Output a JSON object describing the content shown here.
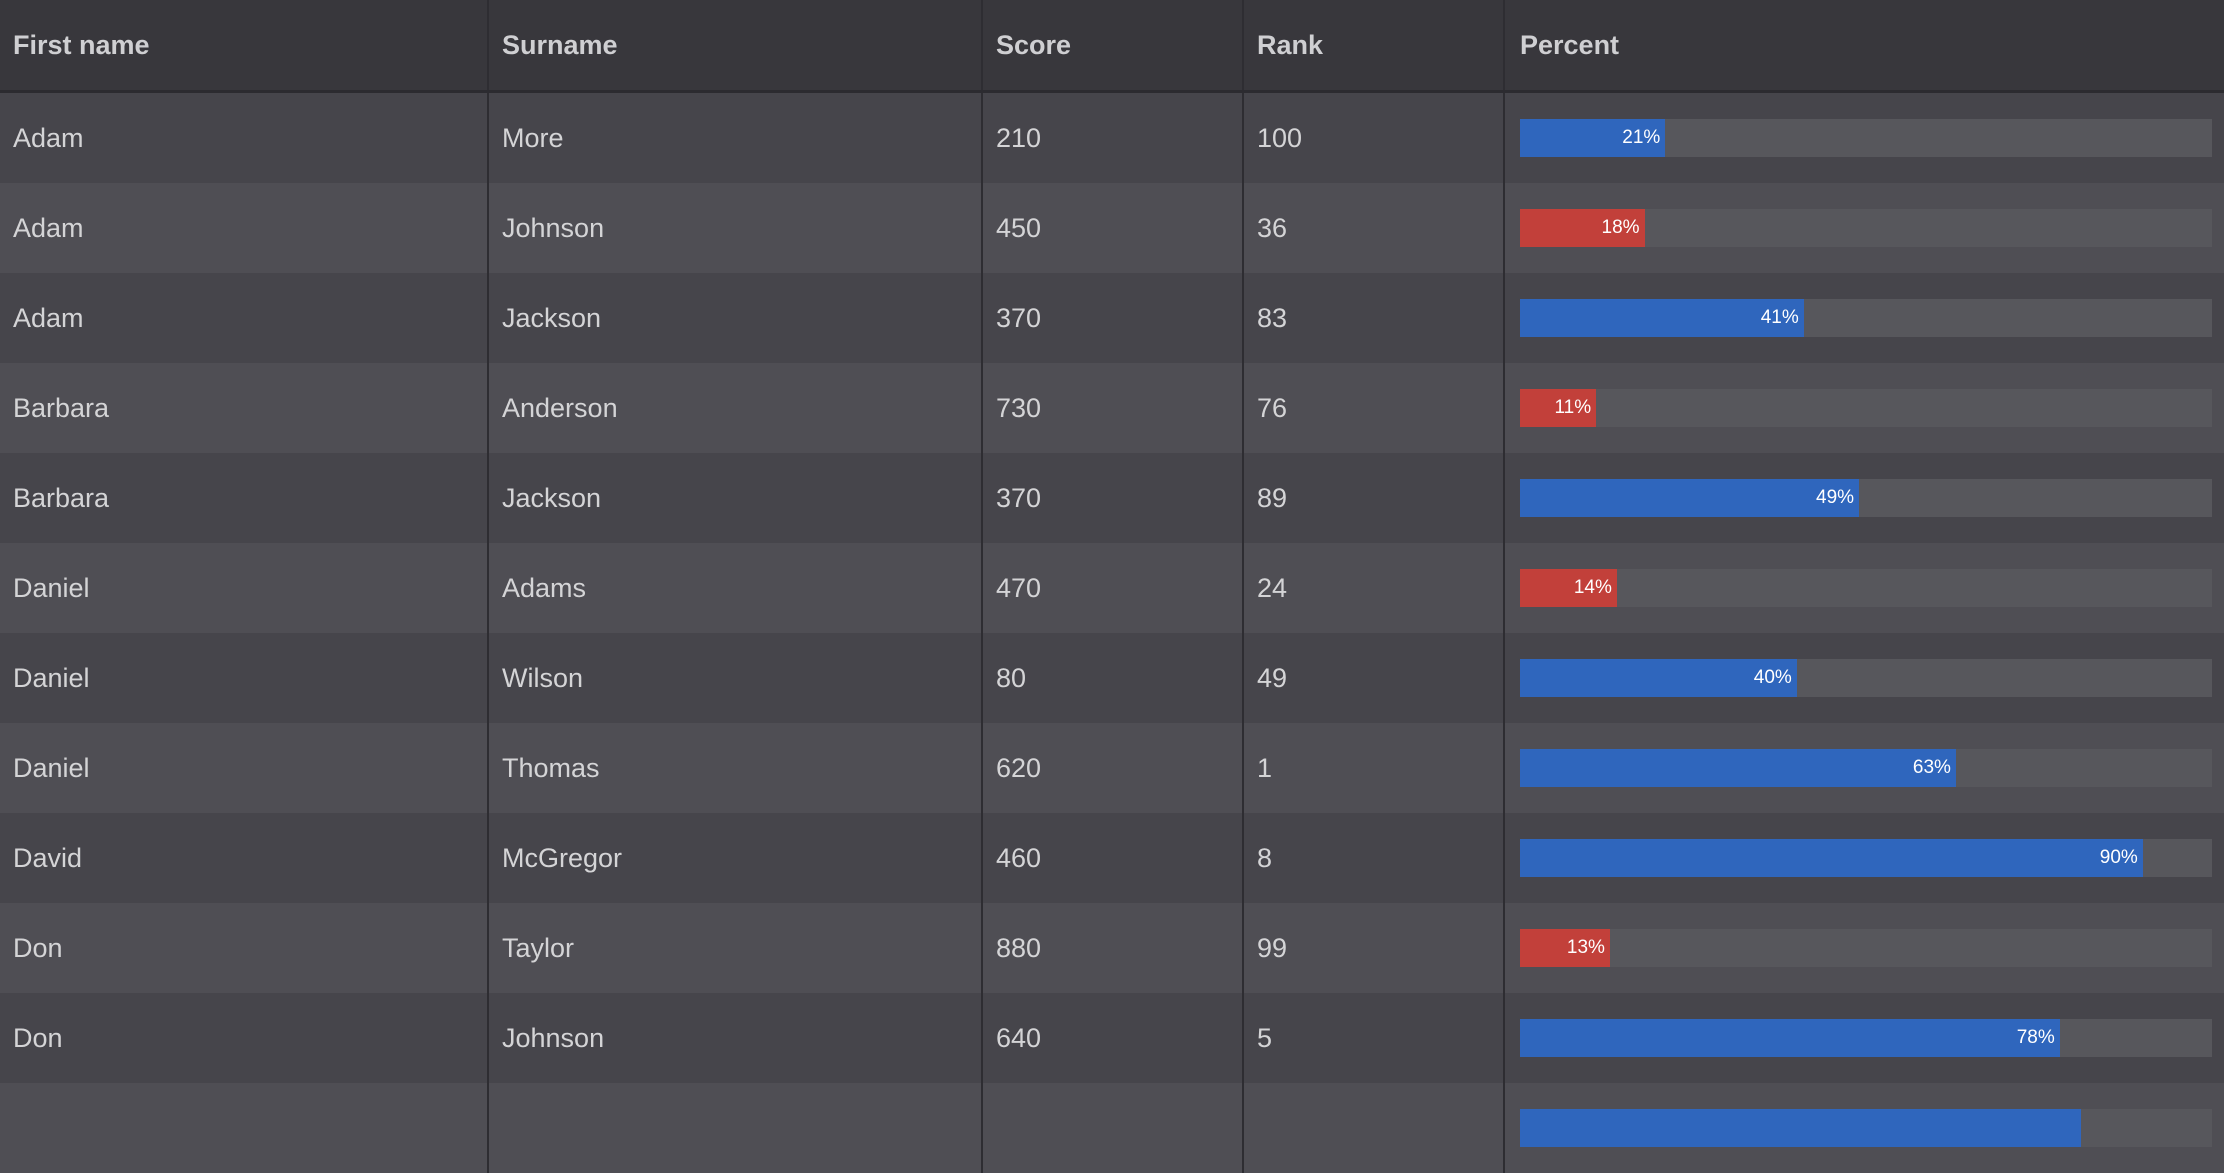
{
  "columns": [
    "First name",
    "Surname",
    "Score",
    "Rank",
    "Percent"
  ],
  "colors": {
    "high": "#2f66bd",
    "low": "#c2403a",
    "track": "#57575c"
  },
  "rows": [
    {
      "first": "Adam",
      "surname": "More",
      "score": "210",
      "rank": "100",
      "percent": 21,
      "percent_label": "21%"
    },
    {
      "first": "Adam",
      "surname": "Johnson",
      "score": "450",
      "rank": "36",
      "percent": 18,
      "percent_label": "18%"
    },
    {
      "first": "Adam",
      "surname": "Jackson",
      "score": "370",
      "rank": "83",
      "percent": 41,
      "percent_label": "41%"
    },
    {
      "first": "Barbara",
      "surname": "Anderson",
      "score": "730",
      "rank": "76",
      "percent": 11,
      "percent_label": "11%"
    },
    {
      "first": "Barbara",
      "surname": "Jackson",
      "score": "370",
      "rank": "89",
      "percent": 49,
      "percent_label": "49%"
    },
    {
      "first": "Daniel",
      "surname": "Adams",
      "score": "470",
      "rank": "24",
      "percent": 14,
      "percent_label": "14%"
    },
    {
      "first": "Daniel",
      "surname": "Wilson",
      "score": "80",
      "rank": "49",
      "percent": 40,
      "percent_label": "40%"
    },
    {
      "first": "Daniel",
      "surname": "Thomas",
      "score": "620",
      "rank": "1",
      "percent": 63,
      "percent_label": "63%"
    },
    {
      "first": "David",
      "surname": "McGregor",
      "score": "460",
      "rank": "8",
      "percent": 90,
      "percent_label": "90%"
    },
    {
      "first": "Don",
      "surname": "Taylor",
      "score": "880",
      "rank": "99",
      "percent": 13,
      "percent_label": "13%"
    },
    {
      "first": "Don",
      "surname": "Johnson",
      "score": "640",
      "rank": "5",
      "percent": 78,
      "percent_label": "78%"
    },
    {
      "first": "",
      "surname": "",
      "score": "",
      "rank": "",
      "percent": 81,
      "percent_label": ""
    }
  ]
}
